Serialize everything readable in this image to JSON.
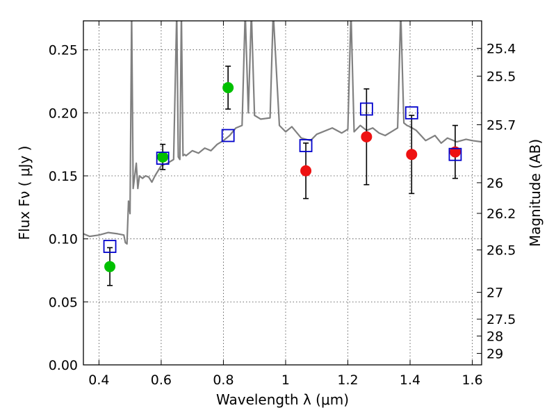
{
  "chart_data": {
    "type": "scatter",
    "title": "",
    "xlabel": "Wavelength  λ (μm)",
    "ylabel": "Flux  Fν  ( μJy )",
    "y2label": "Magnitude (AB)",
    "xlim": [
      0.35,
      1.63
    ],
    "ylim": [
      0.0,
      0.273
    ],
    "grid": true,
    "x_ticks": [
      0.4,
      0.6,
      0.8,
      1.0,
      1.2,
      1.4,
      1.6
    ],
    "x_tick_labels": [
      "0.4",
      "0.6",
      "0.8",
      "1",
      "1.2",
      "1.4",
      "1.6"
    ],
    "y_ticks": [
      0.0,
      0.05,
      0.1,
      0.15,
      0.2,
      0.25
    ],
    "y_tick_labels": [
      "0.00",
      "0.05",
      "0.10",
      "0.15",
      "0.20",
      "0.25"
    ],
    "y2_tick_labels": [
      "25.4",
      "25.5",
      "25.7",
      "26",
      "26.2",
      "26.5",
      "27",
      "27.5",
      "28",
      "29"
    ],
    "series": [
      {
        "kind": "line",
        "color": "#808080",
        "x": [
          0.35,
          0.37,
          0.4,
          0.43,
          0.46,
          0.48,
          0.485,
          0.49,
          0.495,
          0.5,
          0.505,
          0.51,
          0.515,
          0.52,
          0.525,
          0.53,
          0.54,
          0.55,
          0.56,
          0.57,
          0.58,
          0.6,
          0.62,
          0.64,
          0.65,
          0.655,
          0.66,
          0.665,
          0.67,
          0.675,
          0.68,
          0.7,
          0.72,
          0.74,
          0.76,
          0.78,
          0.8,
          0.82,
          0.84,
          0.86,
          0.87,
          0.88,
          0.89,
          0.9,
          0.92,
          0.95,
          0.96,
          0.98,
          1.0,
          1.02,
          1.05,
          1.08,
          1.1,
          1.15,
          1.18,
          1.2,
          1.21,
          1.22,
          1.24,
          1.26,
          1.28,
          1.3,
          1.32,
          1.34,
          1.36,
          1.37,
          1.38,
          1.39,
          1.4,
          1.42,
          1.45,
          1.48,
          1.5,
          1.52,
          1.55,
          1.58,
          1.6,
          1.63
        ],
        "y": [
          0.104,
          0.102,
          0.103,
          0.105,
          0.104,
          0.103,
          0.097,
          0.096,
          0.13,
          0.12,
          0.28,
          0.14,
          0.15,
          0.16,
          0.14,
          0.15,
          0.148,
          0.15,
          0.149,
          0.145,
          0.15,
          0.158,
          0.16,
          0.163,
          0.28,
          0.165,
          0.163,
          0.28,
          0.166,
          0.167,
          0.166,
          0.17,
          0.168,
          0.172,
          0.17,
          0.175,
          0.178,
          0.182,
          0.188,
          0.19,
          0.28,
          0.2,
          0.28,
          0.198,
          0.195,
          0.196,
          0.28,
          0.19,
          0.185,
          0.189,
          0.18,
          0.178,
          0.183,
          0.188,
          0.184,
          0.187,
          0.28,
          0.185,
          0.19,
          0.186,
          0.188,
          0.184,
          0.182,
          0.185,
          0.188,
          0.28,
          0.192,
          0.19,
          0.189,
          0.186,
          0.178,
          0.182,
          0.176,
          0.18,
          0.177,
          0.179,
          0.178,
          0.177
        ]
      },
      {
        "kind": "points",
        "marker": "circle",
        "color": "#00c000",
        "x": [
          0.435,
          0.605,
          0.815
        ],
        "y": [
          0.078,
          0.165,
          0.22
        ],
        "yerr": [
          0.015,
          0.01,
          0.017
        ]
      },
      {
        "kind": "points",
        "marker": "circle",
        "color": "#ee1111",
        "x": [
          1.065,
          1.26,
          1.405,
          1.545
        ],
        "y": [
          0.154,
          0.181,
          0.167,
          0.169
        ],
        "yerr": [
          0.022,
          0.038,
          0.031,
          0.021
        ]
      },
      {
        "kind": "points",
        "marker": "open-square",
        "color": "#0000cc",
        "x": [
          0.435,
          0.605,
          0.815,
          1.065,
          1.26,
          1.405,
          1.545
        ],
        "y": [
          0.094,
          0.164,
          0.182,
          0.174,
          0.203,
          0.2,
          0.167
        ]
      }
    ]
  }
}
